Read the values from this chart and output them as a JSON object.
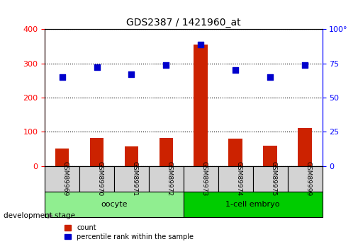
{
  "title": "GDS2387 / 1421960_at",
  "samples": [
    "GSM89969",
    "GSM89970",
    "GSM89971",
    "GSM89972",
    "GSM89973",
    "GSM89974",
    "GSM89975",
    "GSM89999"
  ],
  "counts": [
    50,
    82,
    57,
    82,
    355,
    80,
    60,
    110
  ],
  "percentile_ranks": [
    65,
    72,
    67,
    74,
    89,
    70,
    65,
    74
  ],
  "groups": [
    {
      "label": "oocyte",
      "start": 0,
      "end": 4,
      "color": "#90EE90"
    },
    {
      "label": "1-cell embryo",
      "start": 4,
      "end": 8,
      "color": "#00CC00"
    }
  ],
  "bar_color": "#CC2200",
  "dot_color": "#0000CC",
  "ylim_left": [
    0,
    400
  ],
  "ylim_right": [
    0,
    100
  ],
  "yticks_left": [
    0,
    100,
    200,
    300,
    400
  ],
  "yticks_right": [
    0,
    25,
    50,
    75,
    100
  ],
  "ytick_labels_right": [
    "0",
    "25",
    "50",
    "75",
    "100°"
  ],
  "grid_color": "black",
  "grid_style": "dotted",
  "background_color": "white",
  "legend_count_label": "count",
  "legend_pct_label": "percentile rank within the sample",
  "xlabel_stage": "development stage"
}
